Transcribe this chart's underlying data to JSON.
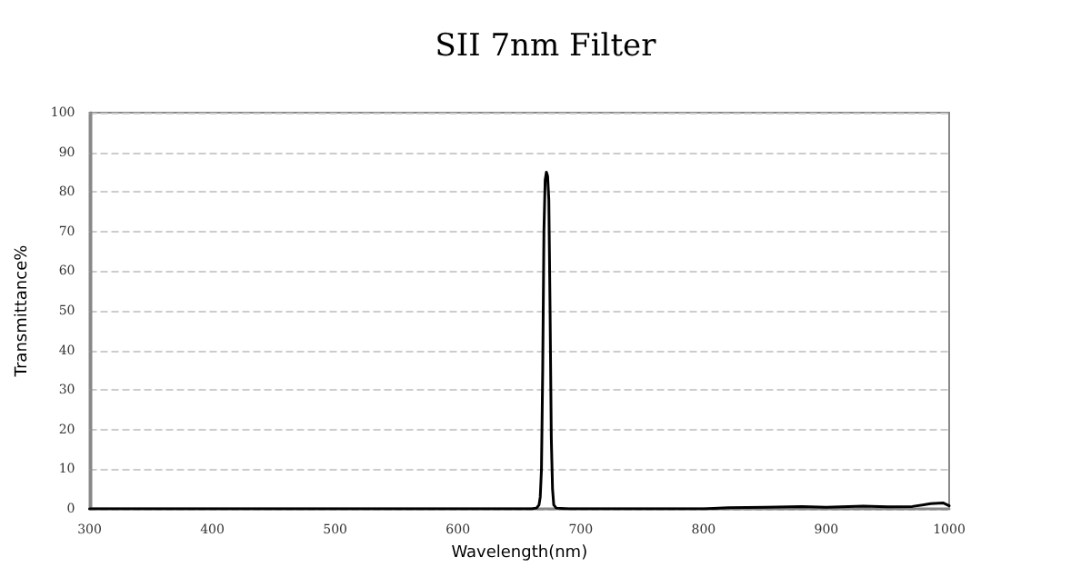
{
  "chart_data": {
    "type": "line",
    "title": "SII 7nm Filter",
    "xlabel": "Wavelength(nm)",
    "ylabel": "Transmittance%",
    "x": [
      300,
      400,
      500,
      600,
      650,
      660,
      664,
      666,
      667,
      668,
      669,
      670,
      671,
      672,
      673,
      674,
      675,
      676,
      677,
      678,
      680,
      690,
      700,
      800,
      820,
      850,
      880,
      900,
      930,
      950,
      970,
      985,
      995,
      1000
    ],
    "series": [
      {
        "color": "#000000",
        "values": [
          0,
          0,
          0,
          0,
          0,
          0,
          0.2,
          1,
          3,
          10,
          35,
          70,
          83,
          85,
          84,
          78,
          50,
          18,
          5,
          1,
          0.2,
          0,
          0,
          0,
          0.3,
          0.4,
          0.6,
          0.4,
          0.7,
          0.5,
          0.6,
          1.3,
          1.5,
          0.8
        ]
      }
    ],
    "xlim": [
      300,
      1000
    ],
    "xticks": [
      300,
      400,
      500,
      600,
      700,
      800,
      900,
      1000
    ],
    "ylim": [
      0,
      100
    ],
    "yticks": [
      0,
      10,
      20,
      30,
      40,
      50,
      60,
      70,
      80,
      90,
      100
    ],
    "grid": "y",
    "marker": "none",
    "line_style": "solid"
  }
}
